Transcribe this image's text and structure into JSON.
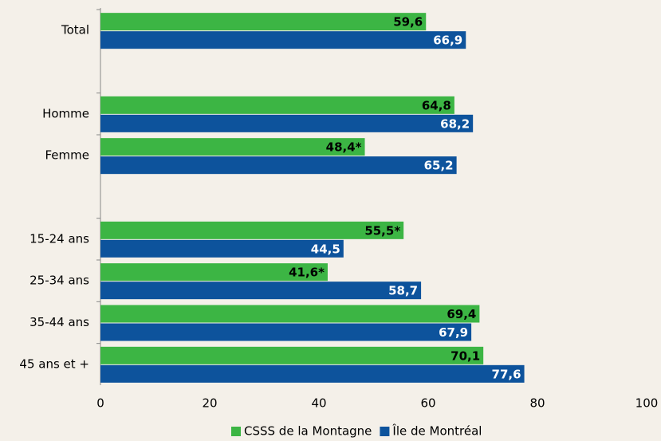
{
  "chart_data": {
    "type": "hbar",
    "categories": [
      "Total",
      null,
      "Homme",
      "Femme",
      null,
      "15-24 ans",
      "25-34 ans",
      "35-44 ans",
      "45 ans et +"
    ],
    "series": [
      {
        "name": "CSSS de la Montagne",
        "color": "#3cb544",
        "values": [
          59.6,
          null,
          64.8,
          48.4,
          null,
          55.5,
          41.6,
          69.4,
          70.1
        ],
        "value_labels": [
          "59,6",
          null,
          "64,8",
          "48,4*",
          null,
          "55,5*",
          "41,6*",
          "69,4",
          "70,1"
        ]
      },
      {
        "name": "Île de Montréal",
        "color": "#0d539c",
        "values": [
          66.9,
          null,
          68.2,
          65.2,
          null,
          44.5,
          58.7,
          67.9,
          77.6
        ],
        "value_labels": [
          "66,9",
          null,
          "68,2",
          "65,2",
          null,
          "44,5",
          "58,7",
          "67,9",
          "77,6"
        ]
      }
    ],
    "xlim": [
      0,
      100
    ],
    "xticks": [
      0,
      20,
      40,
      60,
      80,
      100
    ],
    "legend": "bottom"
  }
}
